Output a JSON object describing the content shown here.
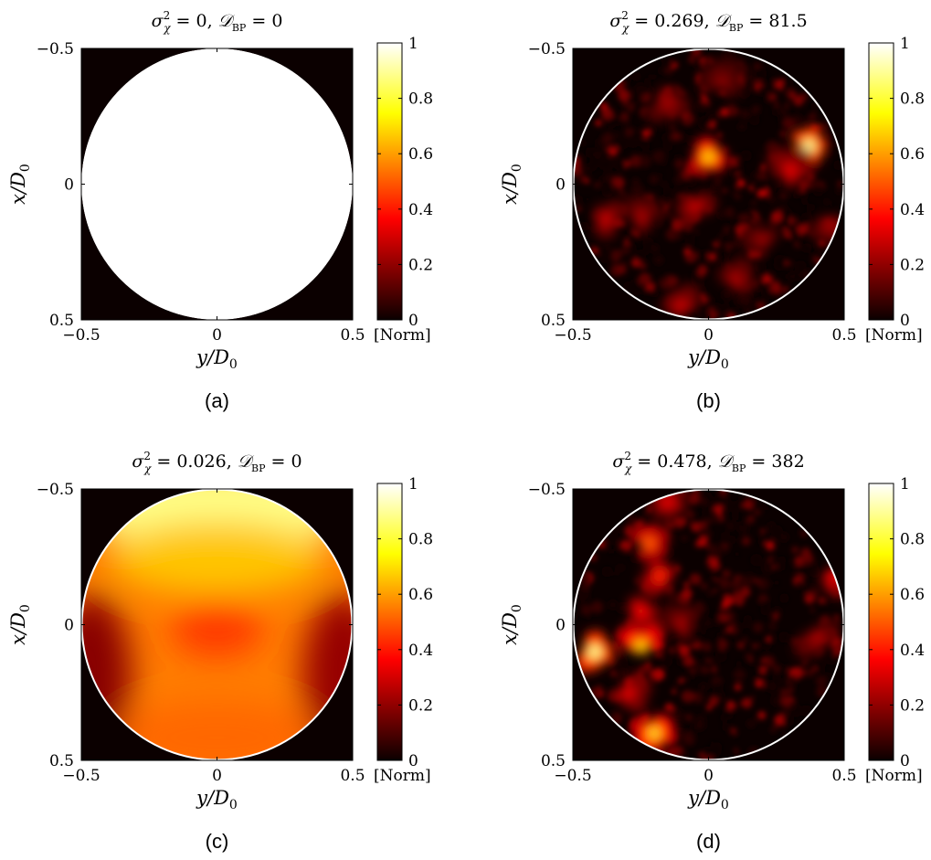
{
  "chart_data": [
    {
      "type": "heatmap",
      "panel_label": "(a)",
      "title": {
        "sigma": "0",
        "d_bp": "0"
      },
      "xlabel": "y/D0",
      "ylabel": "x/D0",
      "xlim": [
        -0.5,
        0.5
      ],
      "ylim": [
        -0.5,
        0.5
      ],
      "x_ticks": [
        "−0.5",
        "0",
        "0.5"
      ],
      "y_ticks": [
        "−0.5",
        "0",
        "0.5"
      ],
      "colorbar": {
        "range": [
          0,
          1
        ],
        "ticks": [
          "0",
          "0.2",
          "0.4",
          "0.6",
          "0.8",
          "1"
        ],
        "unit": "[Norm]"
      },
      "colormap": "hot",
      "pattern": "uniform",
      "aperture_outline": false,
      "blobs": []
    },
    {
      "type": "heatmap",
      "panel_label": "(b)",
      "title": {
        "sigma": "0.269",
        "d_bp": "81.5"
      },
      "xlabel": "y/D0",
      "ylabel": "x/D0",
      "xlim": [
        -0.5,
        0.5
      ],
      "ylim": [
        -0.5,
        0.5
      ],
      "x_ticks": [
        "−0.5",
        "0",
        "0.5"
      ],
      "y_ticks": [
        "−0.5",
        "0",
        "0.5"
      ],
      "colorbar": {
        "range": [
          0,
          1
        ],
        "ticks": [
          "0",
          "0.2",
          "0.4",
          "0.6",
          "0.8",
          "1"
        ],
        "unit": "[Norm]"
      },
      "colormap": "hot",
      "pattern": "speckle",
      "aperture_outline": true,
      "blobs": [
        {
          "x": 0.37,
          "y": -0.14,
          "value": 0.95
        },
        {
          "x": 0.0,
          "y": -0.1,
          "value": 0.75
        },
        {
          "x": 0.3,
          "y": -0.05,
          "value": 0.35
        },
        {
          "x": -0.05,
          "y": 0.08,
          "value": 0.3
        },
        {
          "x": -0.38,
          "y": 0.13,
          "value": 0.3
        },
        {
          "x": -0.25,
          "y": 0.12,
          "value": 0.25
        },
        {
          "x": 0.1,
          "y": 0.35,
          "value": 0.25
        },
        {
          "x": -0.15,
          "y": -0.3,
          "value": 0.25
        },
        {
          "x": 0.05,
          "y": -0.38,
          "value": 0.2
        },
        {
          "x": -0.1,
          "y": 0.45,
          "value": 0.3
        },
        {
          "x": 0.45,
          "y": 0.15,
          "value": 0.25
        },
        {
          "x": 0.2,
          "y": 0.2,
          "value": 0.22
        }
      ]
    },
    {
      "type": "heatmap",
      "panel_label": "(c)",
      "title": {
        "sigma": "0.026",
        "d_bp": "0"
      },
      "xlabel": "y/D0",
      "ylabel": "x/D0",
      "xlim": [
        -0.5,
        0.5
      ],
      "ylim": [
        -0.5,
        0.5
      ],
      "x_ticks": [
        "−0.5",
        "0",
        "0.5"
      ],
      "y_ticks": [
        "−0.5",
        "0",
        "0.5"
      ],
      "colorbar": {
        "range": [
          0,
          1
        ],
        "ticks": [
          "0",
          "0.2",
          "0.4",
          "0.6",
          "0.8",
          "1"
        ],
        "unit": "[Norm]"
      },
      "colormap": "hot",
      "pattern": "smooth",
      "aperture_outline": true,
      "blobs": []
    },
    {
      "type": "heatmap",
      "panel_label": "(d)",
      "title": {
        "sigma": "0.478",
        "d_bp": "382"
      },
      "xlabel": "y/D0",
      "ylabel": "x/D0",
      "xlim": [
        -0.5,
        0.5
      ],
      "ylim": [
        -0.5,
        0.5
      ],
      "x_ticks": [
        "−0.5",
        "0",
        "0.5"
      ],
      "y_ticks": [
        "−0.5",
        "0",
        "0.5"
      ],
      "colorbar": {
        "range": [
          0,
          1
        ],
        "ticks": [
          "0",
          "0.2",
          "0.4",
          "0.6",
          "0.8",
          "1"
        ],
        "unit": "[Norm]"
      },
      "colormap": "hot",
      "pattern": "speckle",
      "aperture_outline": true,
      "blobs": [
        {
          "x": -0.42,
          "y": 0.1,
          "value": 0.95
        },
        {
          "x": -0.25,
          "y": 0.08,
          "value": 0.75
        },
        {
          "x": -0.2,
          "y": 0.4,
          "value": 0.8
        },
        {
          "x": -0.22,
          "y": -0.3,
          "value": 0.55
        },
        {
          "x": -0.18,
          "y": -0.18,
          "value": 0.45
        },
        {
          "x": -0.25,
          "y": -0.05,
          "value": 0.4
        },
        {
          "x": -0.3,
          "y": 0.25,
          "value": 0.35
        },
        {
          "x": 0.47,
          "y": -0.18,
          "value": 0.4
        },
        {
          "x": 0.4,
          "y": 0.05,
          "value": 0.25
        },
        {
          "x": -0.15,
          "y": -0.45,
          "value": 0.35
        },
        {
          "x": -0.1,
          "y": 0.0,
          "value": 0.25
        }
      ]
    }
  ]
}
